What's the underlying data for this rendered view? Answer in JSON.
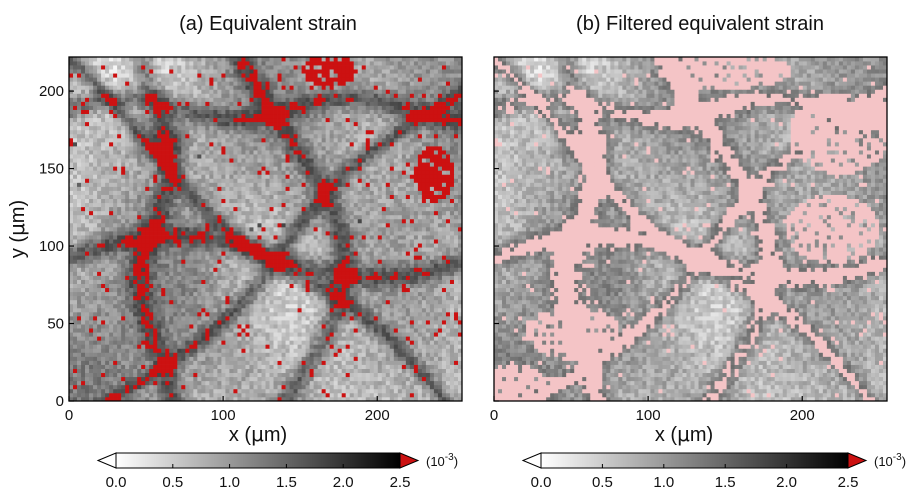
{
  "figure": {
    "panel_a_title": "(a)  Equivalent strain",
    "panel_b_title": "(b) Filtered equivalent strain",
    "y_axis_label_main": "y (",
    "y_axis_label_mu": "μ",
    "y_axis_label_end": "m)",
    "x_axis_label_main": "x (",
    "x_axis_label_mu": "μ",
    "x_axis_label_end": "m)",
    "colorbar_unit": "(10",
    "colorbar_unit_exp": "-3",
    "colorbar_unit_end": ")"
  },
  "chart_data": [
    {
      "type": "heatmap",
      "title": "(a)  Equivalent strain",
      "xlabel": "x (μm)",
      "ylabel": "y (μm)",
      "xlim": [
        0,
        255
      ],
      "ylim": [
        0,
        222
      ],
      "x_ticks": [
        0,
        100,
        200
      ],
      "y_ticks": [
        0,
        50,
        100,
        150,
        200
      ],
      "colormap": "white-to-black grayscale",
      "overflow_color": "#cc1111",
      "overflow_color_note": "red cells exceed 2.5e-3",
      "colorbar": {
        "min": 0.0,
        "max": 2.5,
        "ticks": [
          0.0,
          0.5,
          1.0,
          1.5,
          2.0,
          2.5
        ],
        "tick_labels": [
          "0.0",
          "0.5",
          "1.0",
          "1.5",
          "2.0",
          "2.5"
        ],
        "unit": "(10^-3)",
        "extend_under": "#ffffff",
        "extend_over": "#cc1111"
      },
      "grid": false
    },
    {
      "type": "heatmap",
      "title": "(b) Filtered equivalent strain",
      "xlabel": "x (μm)",
      "ylabel": "",
      "xlim": [
        0,
        255
      ],
      "ylim": [
        0,
        222
      ],
      "x_ticks": [
        0,
        100,
        200
      ],
      "y_ticks": [],
      "colormap": "white-to-black grayscale",
      "overflow_color": "#f4c4c6",
      "colorbar": {
        "min": 0.0,
        "max": 2.5,
        "ticks": [
          0.0,
          0.5,
          1.0,
          1.5,
          2.0,
          2.5
        ],
        "tick_labels": [
          "0.0",
          "0.5",
          "1.0",
          "1.5",
          "2.0",
          "2.5"
        ],
        "unit": "(10^-3)",
        "extend_under": "#ffffff",
        "extend_over": "#cc1111"
      },
      "grid": false
    }
  ]
}
